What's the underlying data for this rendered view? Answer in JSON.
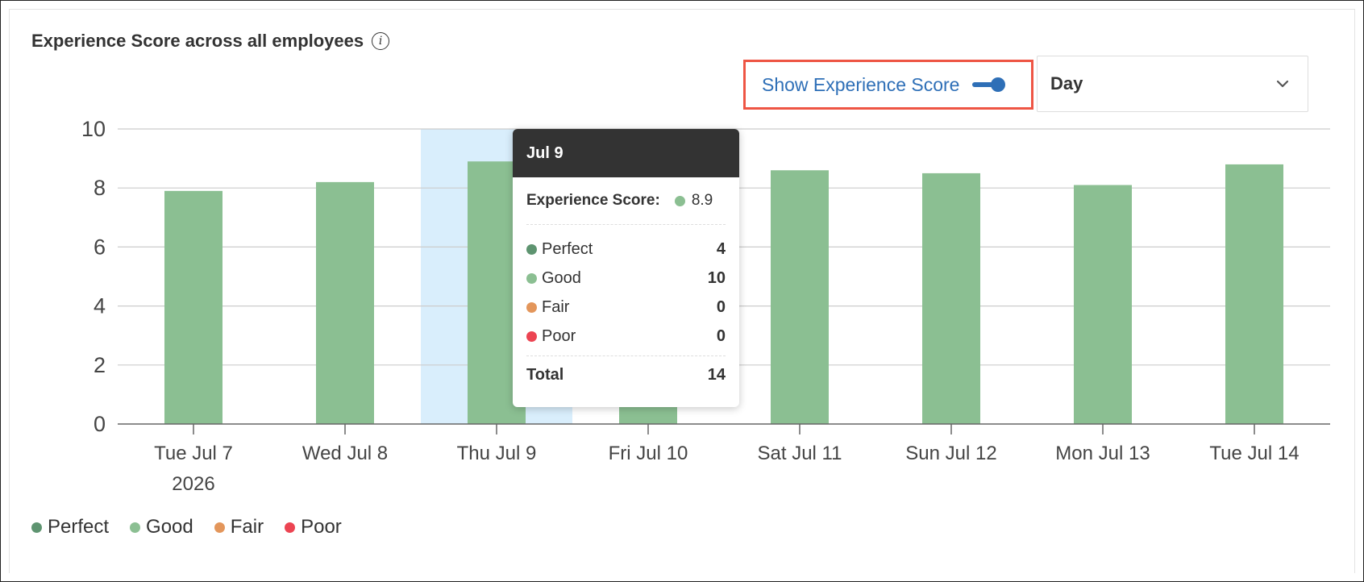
{
  "header": {
    "title": "Experience Score across all employees",
    "info_icon": "info-icon"
  },
  "controls": {
    "toggle_label": "Show Experience Score",
    "toggle_on": true,
    "period_value": "Day"
  },
  "colors": {
    "perfect": "#5e9470",
    "good": "#8bbf92",
    "fair": "#e3965b",
    "poor": "#ec4452",
    "highlight": "#d9eefc",
    "accent": "#2e6fb7",
    "highlight_border": "#ee5544"
  },
  "tooltip": {
    "date": "Jul 9",
    "score_label": "Experience Score:",
    "score_value": "8.9",
    "rows": [
      {
        "label": "Perfect",
        "value": "4"
      },
      {
        "label": "Good",
        "value": "10"
      },
      {
        "label": "Fair",
        "value": "0"
      },
      {
        "label": "Poor",
        "value": "0"
      }
    ],
    "total_label": "Total",
    "total_value": "14"
  },
  "legend": [
    "Perfect",
    "Good",
    "Fair",
    "Poor"
  ],
  "chart_data": {
    "type": "bar",
    "categories": [
      "Tue Jul 7",
      "Wed Jul 8",
      "Thu Jul 9",
      "Fri Jul 10",
      "Sat Jul 11",
      "Sun Jul 12",
      "Mon Jul 13",
      "Tue Jul 14"
    ],
    "first_category_sublabel": "2026",
    "values": [
      7.9,
      8.2,
      8.9,
      8.9,
      8.6,
      8.5,
      8.1,
      8.8
    ],
    "ylim": [
      0,
      10
    ],
    "yticks": [
      0,
      2,
      4,
      6,
      8,
      10
    ],
    "highlighted_category": "Thu Jul 9",
    "grid": true
  }
}
